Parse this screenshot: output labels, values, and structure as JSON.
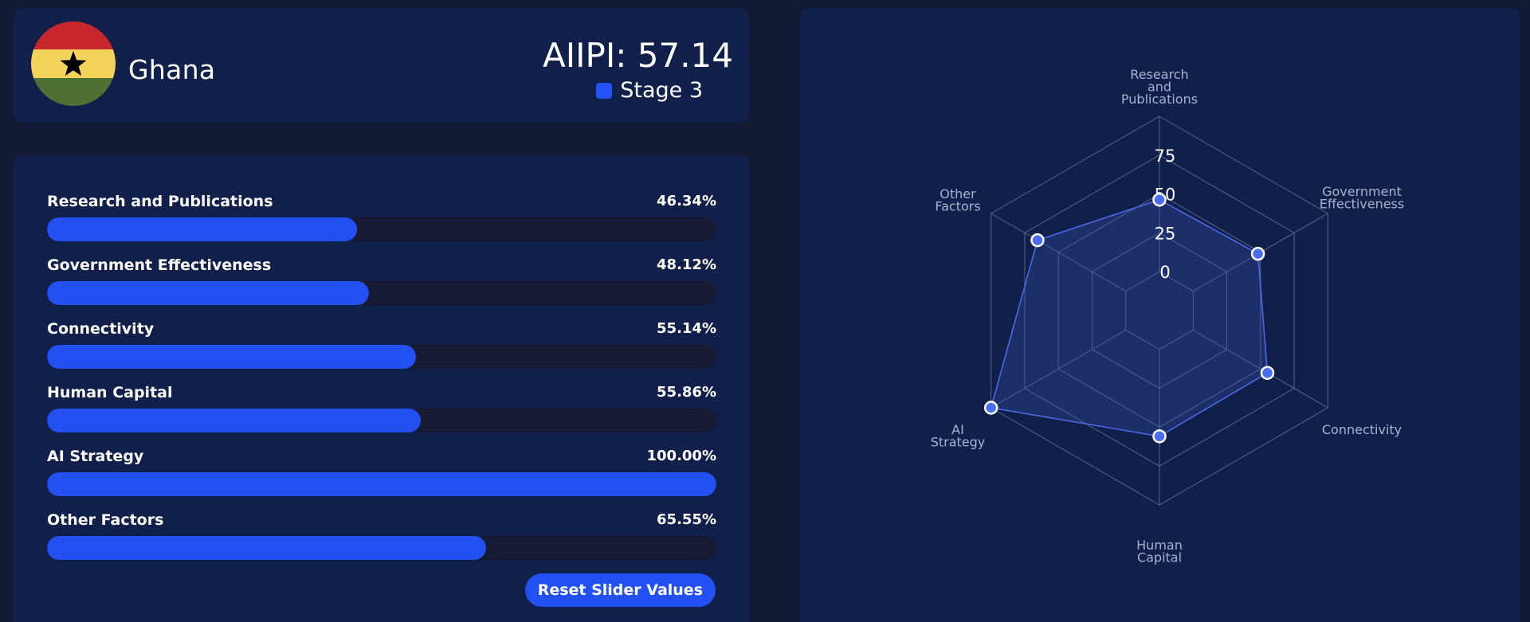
{
  "country": {
    "name": "Ghana",
    "flag_icon": "ghana-flag-icon",
    "flag_colors": {
      "red": "#c8262d",
      "yellow": "#f3d35a",
      "green": "#4e7034",
      "star": "#000000"
    }
  },
  "score": {
    "aiipi_label": "AIIPI: 57.14",
    "stage_label": "Stage 3",
    "stage_color": "#2352f5"
  },
  "sliders": [
    {
      "label": "Research and Publications",
      "value_text": "46.34%",
      "value": 46.34
    },
    {
      "label": "Government Effectiveness",
      "value_text": "48.12%",
      "value": 48.12
    },
    {
      "label": "Connectivity",
      "value_text": "55.14%",
      "value": 55.14
    },
    {
      "label": "Human Capital",
      "value_text": "55.86%",
      "value": 55.86
    },
    {
      "label": "AI Strategy",
      "value_text": "100.00%",
      "value": 100.0
    },
    {
      "label": "Other Factors",
      "value_text": "65.55%",
      "value": 65.55
    }
  ],
  "reset_button": {
    "label": "Reset Slider Values"
  },
  "chart_data": {
    "type": "radar",
    "axes": [
      [
        "Research",
        "and",
        "Publications"
      ],
      [
        "Government",
        "Effectiveness"
      ],
      [
        "Connectivity"
      ],
      [
        "Human",
        "Capital"
      ],
      [
        "AI",
        "Strategy"
      ],
      [
        "Other",
        "Factors"
      ]
    ],
    "values": [
      46.34,
      48.12,
      55.14,
      55.86,
      100.0,
      65.55
    ],
    "ticks": [
      "0",
      "25",
      "50",
      "75"
    ],
    "rlim": [
      -25,
      100
    ],
    "colors": {
      "line": "#4a6cf0",
      "fill": "rgba(60,80,170,0.32)",
      "point": "#4a6cf0",
      "grid": "#57648a"
    }
  }
}
